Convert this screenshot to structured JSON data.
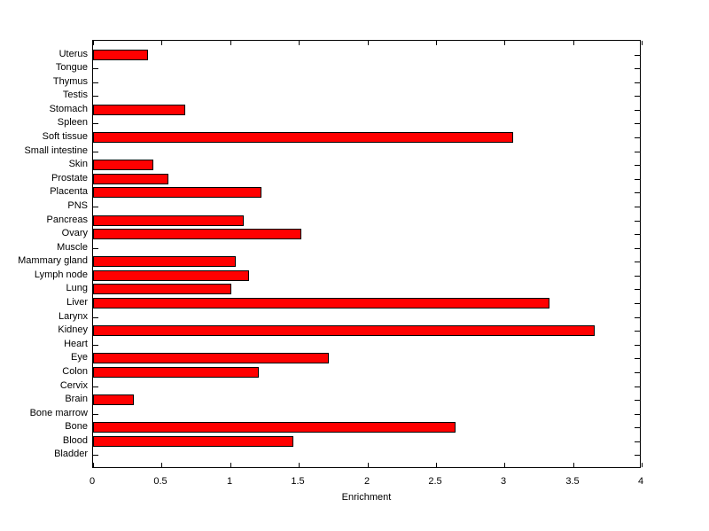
{
  "figure": {
    "background": "#FFFFFF",
    "plot_background": "#FFFFFF",
    "axis_color": "#000000",
    "text_color": "#000000"
  },
  "chart_data": {
    "type": "bar",
    "orientation": "horizontal",
    "title": "",
    "xlabel": "Enrichment",
    "ylabel": "",
    "xlim": [
      0,
      4
    ],
    "xtick_values": [
      0,
      0.5,
      1,
      1.5,
      2,
      2.5,
      3,
      3.5,
      4
    ],
    "xtick_labels": [
      "0",
      "0.5",
      "1",
      "1.5",
      "2",
      "2.5",
      "3",
      "3.5",
      "4"
    ],
    "grid": false,
    "legend": null,
    "bar_color": "#FF0000",
    "bar_edge_color": "#000000",
    "categories_order": "top-to-bottom",
    "categories": [
      "Uterus",
      "Tongue",
      "Thymus",
      "Testis",
      "Stomach",
      "Spleen",
      "Soft tissue",
      "Small intestine",
      "Skin",
      "Prostate",
      "Placenta",
      "PNS",
      "Pancreas",
      "Ovary",
      "Muscle",
      "Mammary gland",
      "Lymph node",
      "Lung",
      "Liver",
      "Larynx",
      "Kidney",
      "Heart",
      "Eye",
      "Colon",
      "Cervix",
      "Brain",
      "Bone marrow",
      "Bone",
      "Blood",
      "Bladder"
    ],
    "values": [
      0.4,
      0,
      0,
      0,
      0.67,
      0,
      3.06,
      0,
      0.44,
      0.55,
      1.23,
      0,
      1.1,
      1.52,
      0,
      1.04,
      1.14,
      1.01,
      3.33,
      0,
      3.66,
      0,
      1.72,
      1.21,
      0,
      0.3,
      0,
      2.64,
      1.46,
      0
    ]
  }
}
